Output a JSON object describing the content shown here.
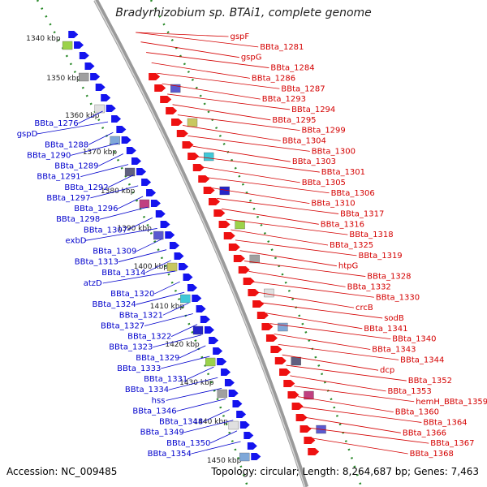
{
  "title": "Bradyrhizobium sp. BTAi1, complete genome",
  "footer": {
    "accession": "Accession: NC_009485",
    "summary": "Topology: circular; Length: 8,264,687 bp; Genes: 7,463"
  },
  "colors": {
    "minus_strand_label": "#0000cc",
    "plus_strand_label": "#d40000",
    "backbone": "#888888",
    "tick": "#2a8a2a",
    "gene_blue": "#1414ee",
    "gene_red": "#ee1111"
  },
  "kbp_ticks": [
    "1340 kbp",
    "1350 kbp",
    "1360 kbp",
    "1370 kbp",
    "1380 kbp",
    "1390 kbp",
    "1400 kbp",
    "1410 kbp",
    "1420 kbp",
    "1430 kbp",
    "1440 kbp",
    "1450 kbp"
  ],
  "left_labels": [
    "BBta_1276",
    "gspD",
    "BBta_1288",
    "BBta_1290",
    "BBta_1289",
    "BBta_1291",
    "BBta_1292",
    "BBta_1297",
    "BBta_1296",
    "BBta_1298",
    "BBta_1307",
    "exbD",
    "BBta_1309",
    "BBta_1313",
    "BBta_1314",
    "atzD",
    "BBta_1320",
    "BBta_1324",
    "BBta_1321",
    "BBta_1327",
    "BBta_1322",
    "BBta_1323",
    "BBta_1329",
    "BBta_1333",
    "BBta_1331",
    "BBta_1334",
    "hss",
    "BBta_1346",
    "BBta_1348",
    "BBta_1349",
    "BBta_1350",
    "BBta_1354"
  ],
  "right_labels": [
    "gspF",
    "BBta_1281",
    "gspG",
    "BBta_1284",
    "BBta_1286",
    "BBta_1287",
    "BBta_1293",
    "BBta_1294",
    "BBta_1295",
    "BBta_1299",
    "BBta_1304",
    "BBta_1300",
    "BBta_1303",
    "BBta_1301",
    "BBta_1305",
    "BBta_1306",
    "BBta_1310",
    "BBta_1317",
    "BBta_1316",
    "BBta_1318",
    "BBta_1325",
    "BBta_1319",
    "htpG",
    "BBta_1328",
    "BBta_1332",
    "BBta_1330",
    "crcB",
    "sodB",
    "BBta_1341",
    "BBta_1340",
    "BBta_1343",
    "BBta_1344",
    "dcp",
    "BBta_1352",
    "BBta_1353",
    "hemH_BBta_1359",
    "BBta_1360",
    "BBta_1364",
    "BBta_1366",
    "BBta_1367",
    "BBta_1368"
  ]
}
